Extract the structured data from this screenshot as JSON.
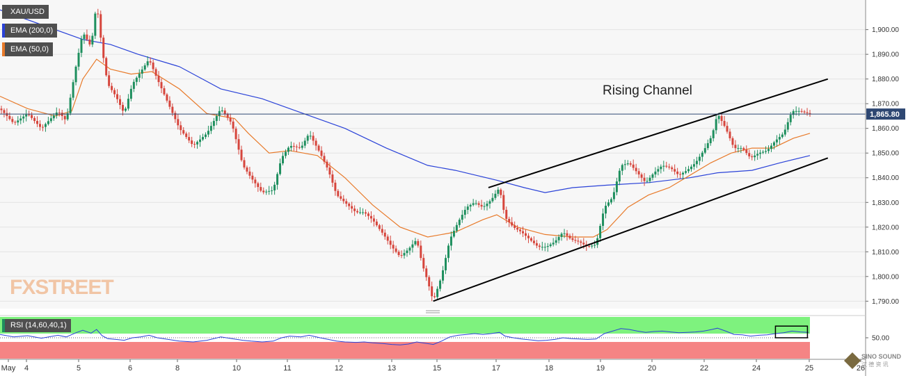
{
  "labels": {
    "symbol": "XAU/USD",
    "ema200": "EMA (200,0)",
    "ema50": "EMA (50,0)",
    "rsi": "RSI (14,60,40,1)"
  },
  "brand": {
    "logo": "FXSTREET",
    "watermark": "SINO SOUND"
  },
  "colors": {
    "bullish": "#1e8f5e",
    "bearish": "#d6453c",
    "ema200": "#2a42d8",
    "ema50": "#e87a2a",
    "rsi_line": "#2a42d8",
    "rsi_upper": "#7ef27e",
    "rsi_lower": "#f58484",
    "price_tag_bg": "#2e4772",
    "channel": "#000000"
  },
  "chart_data": {
    "type": "candlestick",
    "symbol": "XAU/USD",
    "annotation": "Rising Channel",
    "last_price": "1,865.80",
    "ylim": [
      1787,
      1912
    ],
    "y_ticks": [
      "1,790.00",
      "1,800.00",
      "1,810.00",
      "1,820.00",
      "1,830.00",
      "1,840.00",
      "1,850.00",
      "1,860.00",
      "1,870.00",
      "1,880.00",
      "1,890.00",
      "1,900.00"
    ],
    "x_ticks": [
      "May",
      "4",
      "5",
      "6",
      "8",
      "10",
      "11",
      "12",
      "13",
      "15",
      "17",
      "18",
      "19",
      "20",
      "22",
      "24",
      "25",
      "26"
    ],
    "price_path": [
      [
        0,
        1868
      ],
      [
        10,
        1862
      ],
      [
        20,
        1866
      ],
      [
        30,
        1860
      ],
      [
        42,
        1867
      ],
      [
        48,
        1863
      ],
      [
        55,
        1885
      ],
      [
        60,
        1899
      ],
      [
        66,
        1893
      ],
      [
        70,
        1911
      ],
      [
        74,
        1892
      ],
      [
        78,
        1878
      ],
      [
        84,
        1873
      ],
      [
        90,
        1866
      ],
      [
        96,
        1878
      ],
      [
        102,
        1883
      ],
      [
        108,
        1888
      ],
      [
        114,
        1880
      ],
      [
        122,
        1870
      ],
      [
        130,
        1860
      ],
      [
        140,
        1853
      ],
      [
        150,
        1858
      ],
      [
        160,
        1868
      ],
      [
        168,
        1862
      ],
      [
        176,
        1845
      ],
      [
        182,
        1840
      ],
      [
        190,
        1834
      ],
      [
        198,
        1835
      ],
      [
        204,
        1848
      ],
      [
        210,
        1853
      ],
      [
        218,
        1852
      ],
      [
        224,
        1858
      ],
      [
        232,
        1850
      ],
      [
        238,
        1843
      ],
      [
        244,
        1833
      ],
      [
        250,
        1830
      ],
      [
        258,
        1826
      ],
      [
        264,
        1826
      ],
      [
        270,
        1823
      ],
      [
        278,
        1817
      ],
      [
        284,
        1812
      ],
      [
        290,
        1808
      ],
      [
        296,
        1811
      ],
      [
        302,
        1815
      ],
      [
        306,
        1805
      ],
      [
        310,
        1798
      ],
      [
        314,
        1790
      ],
      [
        320,
        1800
      ],
      [
        326,
        1815
      ],
      [
        332,
        1822
      ],
      [
        338,
        1828
      ],
      [
        344,
        1830
      ],
      [
        350,
        1828
      ],
      [
        356,
        1831
      ],
      [
        362,
        1836
      ],
      [
        366,
        1824
      ],
      [
        372,
        1820
      ],
      [
        378,
        1818
      ],
      [
        384,
        1815
      ],
      [
        390,
        1812
      ],
      [
        396,
        1812
      ],
      [
        402,
        1814
      ],
      [
        408,
        1818
      ],
      [
        414,
        1815
      ],
      [
        420,
        1814
      ],
      [
        426,
        1812
      ],
      [
        432,
        1813
      ],
      [
        438,
        1828
      ],
      [
        444,
        1832
      ],
      [
        450,
        1845
      ],
      [
        456,
        1846
      ],
      [
        462,
        1842
      ],
      [
        468,
        1838
      ],
      [
        474,
        1842
      ],
      [
        480,
        1845
      ],
      [
        486,
        1844
      ],
      [
        492,
        1841
      ],
      [
        498,
        1843
      ],
      [
        504,
        1846
      ],
      [
        510,
        1851
      ],
      [
        516,
        1857
      ],
      [
        520,
        1866
      ],
      [
        526,
        1860
      ],
      [
        532,
        1852
      ],
      [
        538,
        1852
      ],
      [
        544,
        1848
      ],
      [
        550,
        1850
      ],
      [
        556,
        1851
      ],
      [
        562,
        1855
      ],
      [
        568,
        1858
      ],
      [
        574,
        1867
      ],
      [
        580,
        1867
      ],
      [
        586,
        1866
      ]
    ],
    "ema50_path": [
      [
        0,
        1873
      ],
      [
        20,
        1868
      ],
      [
        40,
        1865
      ],
      [
        52,
        1867
      ],
      [
        60,
        1880
      ],
      [
        70,
        1888
      ],
      [
        80,
        1884
      ],
      [
        95,
        1882
      ],
      [
        110,
        1883
      ],
      [
        130,
        1876
      ],
      [
        150,
        1866
      ],
      [
        170,
        1864
      ],
      [
        180,
        1858
      ],
      [
        195,
        1850
      ],
      [
        210,
        1851
      ],
      [
        230,
        1849
      ],
      [
        250,
        1840
      ],
      [
        270,
        1829
      ],
      [
        290,
        1820
      ],
      [
        310,
        1816
      ],
      [
        330,
        1818
      ],
      [
        350,
        1823
      ],
      [
        360,
        1825
      ],
      [
        375,
        1820
      ],
      [
        395,
        1817
      ],
      [
        415,
        1816
      ],
      [
        430,
        1816
      ],
      [
        440,
        1819
      ],
      [
        455,
        1828
      ],
      [
        470,
        1833
      ],
      [
        485,
        1836
      ],
      [
        500,
        1841
      ],
      [
        515,
        1846
      ],
      [
        530,
        1850
      ],
      [
        545,
        1852
      ],
      [
        560,
        1852
      ],
      [
        575,
        1856
      ],
      [
        587,
        1858
      ]
    ],
    "ema200_path": [
      [
        0,
        1908
      ],
      [
        30,
        1902
      ],
      [
        60,
        1896
      ],
      [
        80,
        1894
      ],
      [
        100,
        1890
      ],
      [
        130,
        1885
      ],
      [
        160,
        1876
      ],
      [
        190,
        1872
      ],
      [
        220,
        1866
      ],
      [
        250,
        1860
      ],
      [
        280,
        1852
      ],
      [
        310,
        1845
      ],
      [
        330,
        1843
      ],
      [
        345,
        1841
      ],
      [
        360,
        1839
      ],
      [
        380,
        1836
      ],
      [
        395,
        1834
      ],
      [
        415,
        1836
      ],
      [
        440,
        1837
      ],
      [
        470,
        1838
      ],
      [
        500,
        1840
      ],
      [
        520,
        1842
      ],
      [
        545,
        1843
      ],
      [
        565,
        1846
      ],
      [
        587,
        1849
      ]
    ],
    "channel_upper": [
      [
        354,
        1836
      ],
      [
        600,
        1880
      ]
    ],
    "channel_lower": [
      [
        314,
        1790
      ],
      [
        600,
        1848
      ]
    ],
    "price_line": 1865.8,
    "rsi": {
      "ylim": [
        0,
        100
      ],
      "upper_band": [
        60,
        100
      ],
      "lower_band": [
        0,
        40
      ],
      "level_label": "50.00",
      "values": [
        [
          0,
          58
        ],
        [
          10,
          52
        ],
        [
          20,
          55
        ],
        [
          30,
          49
        ],
        [
          42,
          56
        ],
        [
          48,
          52
        ],
        [
          55,
          62
        ],
        [
          60,
          68
        ],
        [
          66,
          61
        ],
        [
          70,
          70
        ],
        [
          74,
          55
        ],
        [
          78,
          48
        ],
        [
          84,
          46
        ],
        [
          90,
          44
        ],
        [
          96,
          50
        ],
        [
          102,
          52
        ],
        [
          108,
          56
        ],
        [
          114,
          50
        ],
        [
          122,
          46
        ],
        [
          130,
          42
        ],
        [
          140,
          40
        ],
        [
          150,
          44
        ],
        [
          160,
          52
        ],
        [
          168,
          48
        ],
        [
          176,
          44
        ],
        [
          182,
          42
        ],
        [
          190,
          40
        ],
        [
          198,
          42
        ],
        [
          204,
          50
        ],
        [
          210,
          54
        ],
        [
          218,
          52
        ],
        [
          224,
          56
        ],
        [
          232,
          50
        ],
        [
          238,
          46
        ],
        [
          244,
          42
        ],
        [
          250,
          40
        ],
        [
          258,
          39
        ],
        [
          264,
          40
        ],
        [
          270,
          38
        ],
        [
          278,
          36
        ],
        [
          284,
          34
        ],
        [
          290,
          33
        ],
        [
          296,
          35
        ],
        [
          302,
          40
        ],
        [
          306,
          38
        ],
        [
          310,
          36
        ],
        [
          314,
          34
        ],
        [
          320,
          42
        ],
        [
          326,
          52
        ],
        [
          332,
          56
        ],
        [
          338,
          58
        ],
        [
          344,
          60
        ],
        [
          350,
          58
        ],
        [
          356,
          60
        ],
        [
          362,
          63
        ],
        [
          366,
          54
        ],
        [
          372,
          50
        ],
        [
          378,
          47
        ],
        [
          384,
          45
        ],
        [
          390,
          43
        ],
        [
          396,
          44
        ],
        [
          402,
          46
        ],
        [
          408,
          50
        ],
        [
          414,
          48
        ],
        [
          420,
          47
        ],
        [
          426,
          46
        ],
        [
          432,
          47
        ],
        [
          438,
          60
        ],
        [
          444,
          66
        ],
        [
          450,
          72
        ],
        [
          456,
          70
        ],
        [
          462,
          66
        ],
        [
          468,
          63
        ],
        [
          474,
          65
        ],
        [
          480,
          66
        ],
        [
          486,
          64
        ],
        [
          492,
          62
        ],
        [
          498,
          63
        ],
        [
          504,
          64
        ],
        [
          510,
          66
        ],
        [
          516,
          70
        ],
        [
          520,
          73
        ],
        [
          526,
          66
        ],
        [
          532,
          58
        ],
        [
          538,
          57
        ],
        [
          544,
          54
        ],
        [
          550,
          56
        ],
        [
          556,
          57
        ],
        [
          562,
          60
        ],
        [
          568,
          62
        ],
        [
          574,
          66
        ],
        [
          580,
          64
        ],
        [
          586,
          63
        ]
      ]
    }
  }
}
